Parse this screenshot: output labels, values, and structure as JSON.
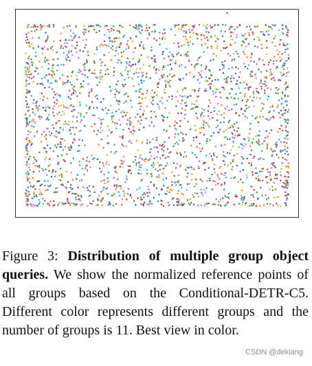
{
  "figure": {
    "number_label": "Figure 3:",
    "bold_title": "Distribution of multiple group object queries.",
    "description": "We show the normalized reference points of all groups based on the Conditional-DETR-C5. Different color represents different groups and the number of groups is 11. Best view in color."
  },
  "watermark": "CSDN @dekiang",
  "chart_data": {
    "type": "scatter",
    "title": "",
    "xlabel": "",
    "ylabel": "",
    "xlim": [
      0,
      1
    ],
    "ylim": [
      0,
      1
    ],
    "grid": false,
    "axes_visible": false,
    "num_groups": 11,
    "group_colors": [
      "#1f77b4",
      "#ff7f0e",
      "#2ca02c",
      "#d62728",
      "#9467bd",
      "#8c564b",
      "#e377c2",
      "#7f7f7f",
      "#bcbd22",
      "#17becf",
      "#3a55c8"
    ]
  }
}
